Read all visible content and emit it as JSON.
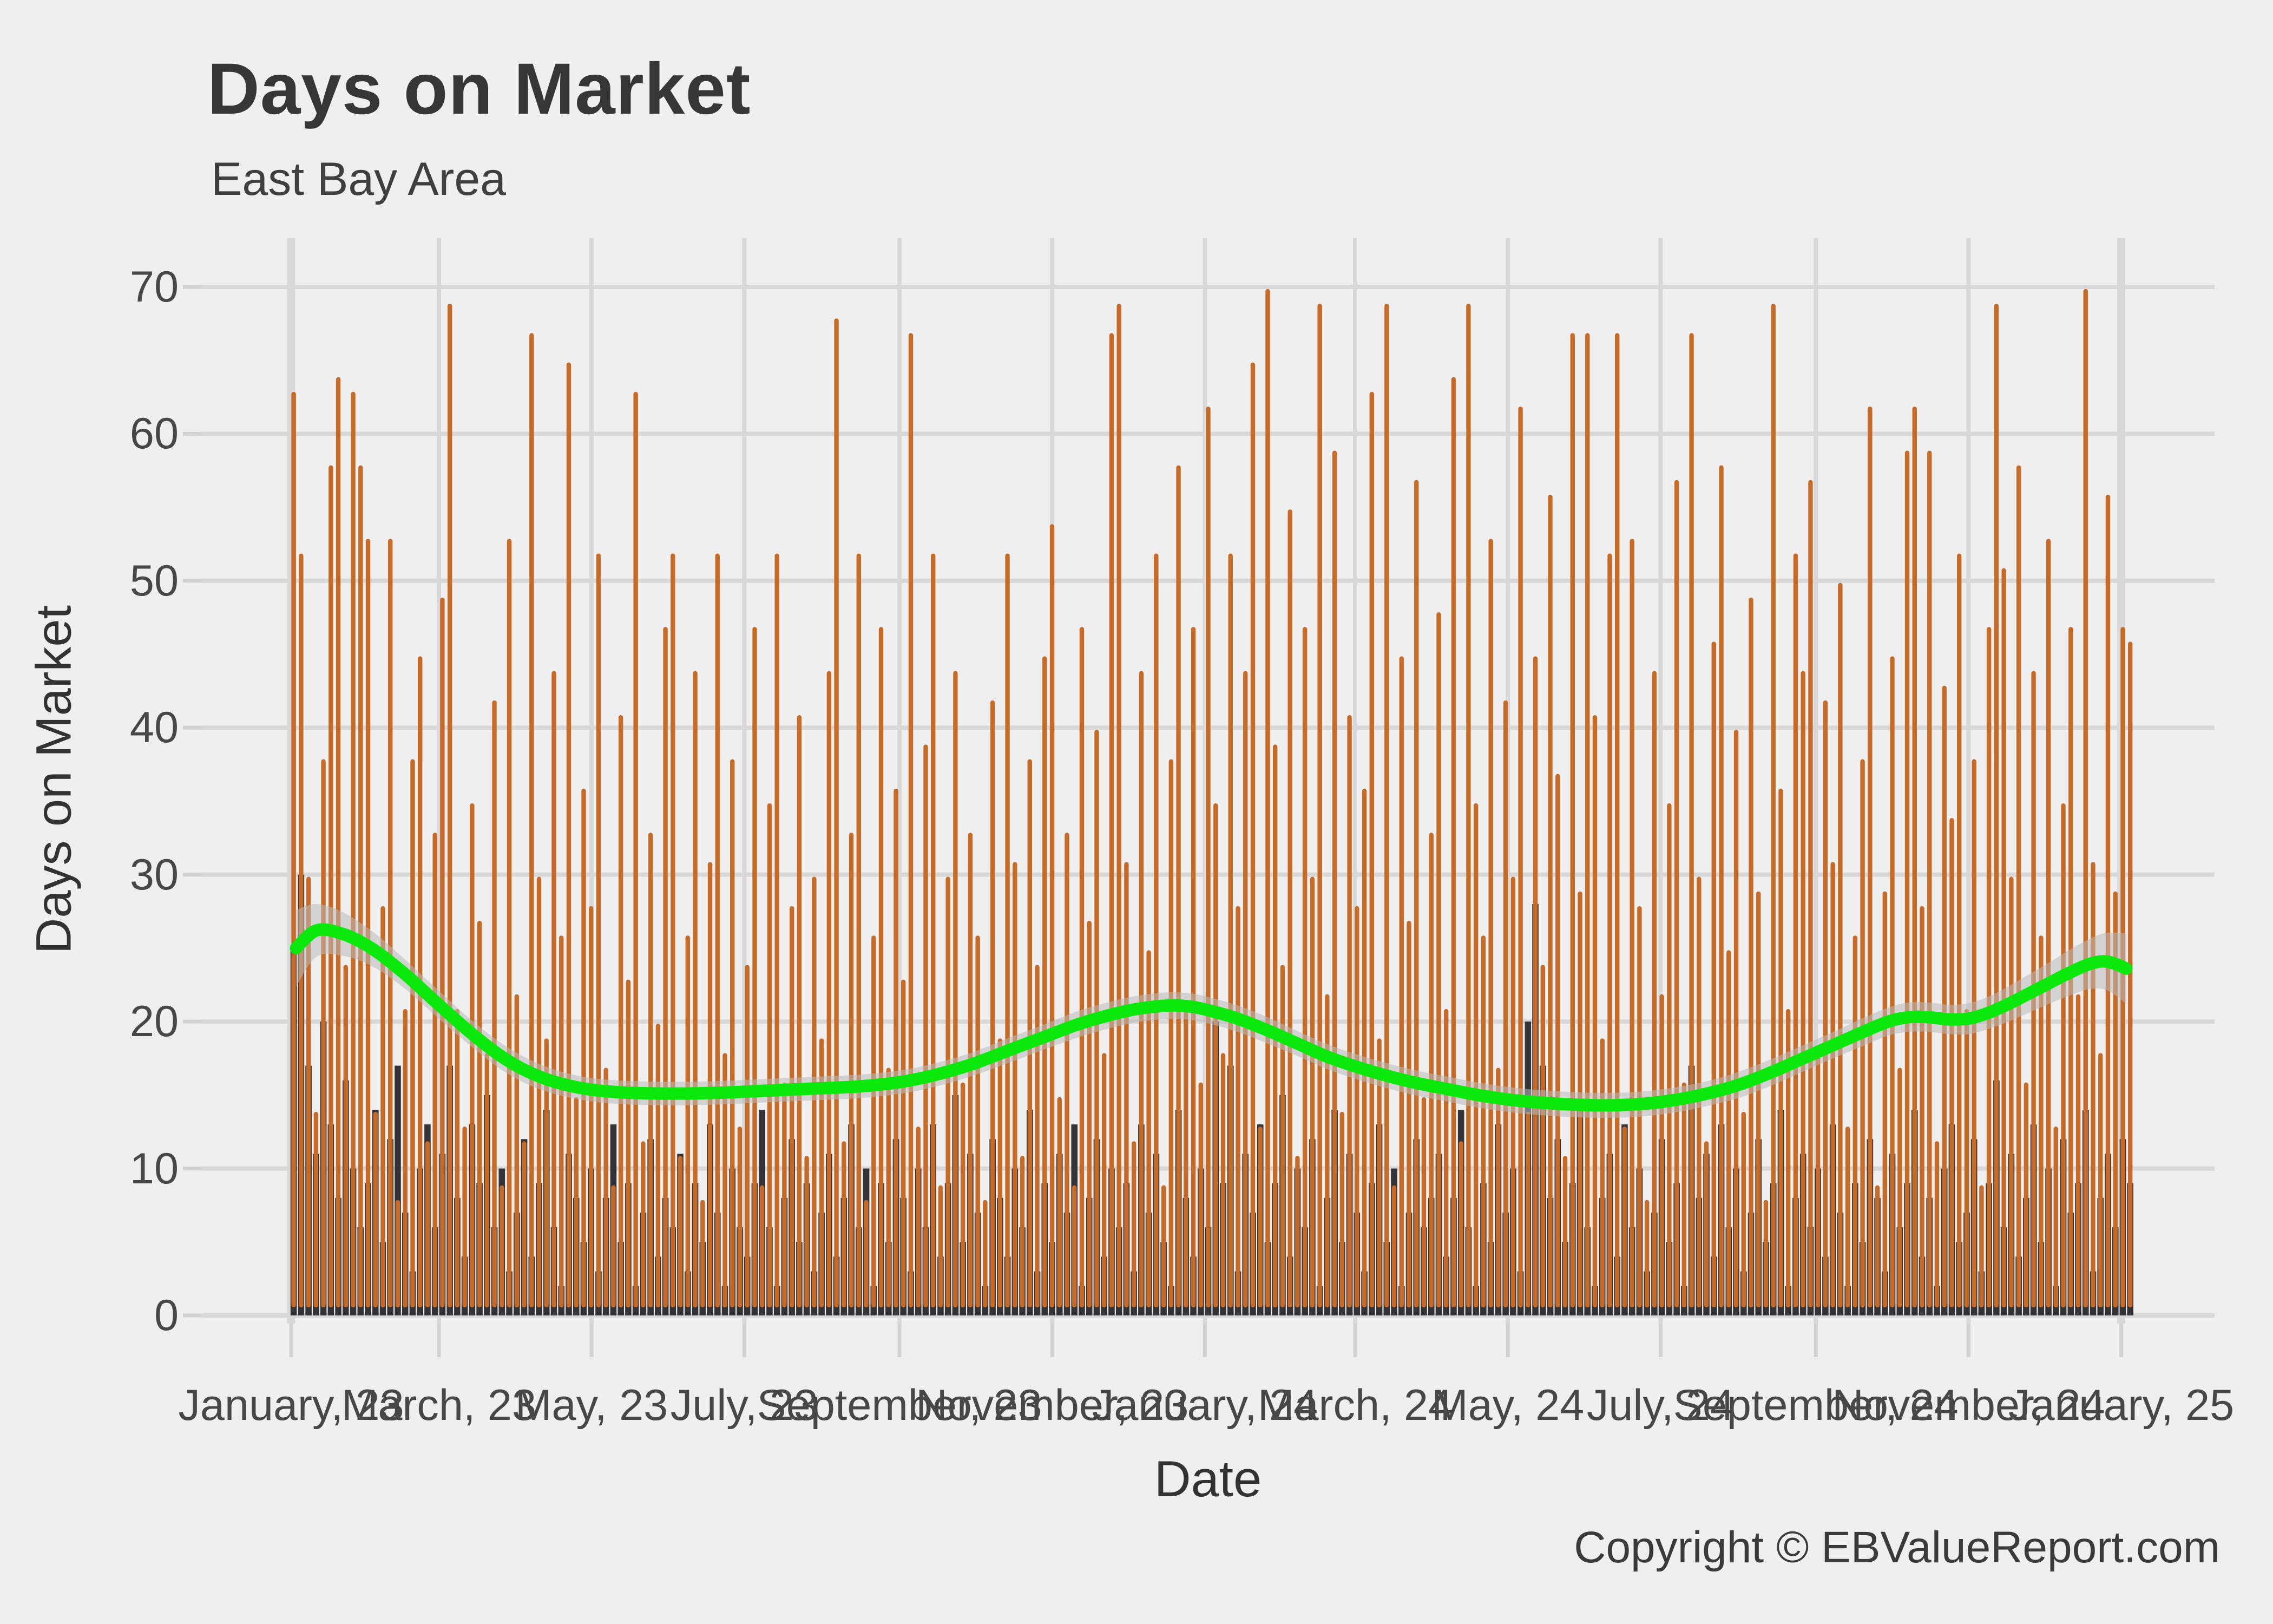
{
  "header": {
    "title": "Days on Market",
    "subtitle": "East Bay Area",
    "caption": "Copyright © EBValueReport.com"
  },
  "style": {
    "background": "#EFEFEF",
    "gridline_color": "#D8D8D8",
    "tick_color": "#D2D2D2",
    "bar_color": "#C76A26",
    "dark_bar_color": "#343338",
    "trend_color": "#0BE80B",
    "ribbon_color": "rgba(185,185,185,0.55)",
    "title_color": "#363636",
    "axis_text_color": "#474747"
  },
  "y_axis": {
    "label": "Days on Market",
    "ticks": [
      0,
      10,
      20,
      30,
      40,
      50,
      60,
      70
    ]
  },
  "x_axis": {
    "label": "Date",
    "ticks": [
      {
        "label": "January, 23",
        "day": 0,
        "emph": true
      },
      {
        "label": "March, 23",
        "day": 59,
        "emph": false
      },
      {
        "label": "May, 23",
        "day": 120,
        "emph": false
      },
      {
        "label": "July, 23",
        "day": 181,
        "emph": false
      },
      {
        "label": "September, 23",
        "day": 243,
        "emph": false
      },
      {
        "label": "November, 23",
        "day": 304,
        "emph": false
      },
      {
        "label": "January, 24",
        "day": 365,
        "emph": false
      },
      {
        "label": "March, 24",
        "day": 425,
        "emph": false
      },
      {
        "label": "May, 24",
        "day": 486,
        "emph": false
      },
      {
        "label": "July, 24",
        "day": 547,
        "emph": false
      },
      {
        "label": "September, 24",
        "day": 609,
        "emph": false
      },
      {
        "label": "November, 24",
        "day": 670,
        "emph": false
      },
      {
        "label": "January, 25",
        "day": 731,
        "emph": true
      }
    ]
  },
  "chart_data": {
    "type": "bar",
    "title": "Days on Market",
    "xlabel": "Date",
    "ylabel": "Days on Market",
    "ylim": [
      0,
      70
    ],
    "x_unit": "days since 2023-01-01 (Jan 2023 through mid-January 2025)",
    "bar_start_day": 1,
    "bar_pitch_days": 2.97,
    "series": [
      {
        "name": "listing-days-on-market-high",
        "color": "#C76A26",
        "values": [
          63,
          52,
          30,
          14,
          38,
          58,
          64,
          24,
          63,
          58,
          53,
          14,
          28,
          53,
          8,
          21,
          38,
          45,
          12,
          33,
          49,
          69,
          21,
          13,
          35,
          27,
          18,
          42,
          9,
          53,
          22,
          12,
          67,
          30,
          19,
          44,
          26,
          65,
          15,
          36,
          28,
          52,
          17,
          9,
          41,
          23,
          63,
          12,
          33,
          20,
          47,
          52,
          11,
          26,
          44,
          8,
          31,
          52,
          18,
          38,
          13,
          24,
          47,
          9,
          35,
          52,
          16,
          28,
          41,
          11,
          30,
          19,
          44,
          68,
          12,
          33,
          52,
          8,
          26,
          47,
          17,
          36,
          23,
          67,
          13,
          39,
          52,
          9,
          30,
          44,
          16,
          33,
          26,
          8,
          42,
          19,
          52,
          31,
          11,
          38,
          24,
          45,
          54,
          15,
          33,
          9,
          47,
          27,
          40,
          18,
          67,
          69,
          31,
          12,
          44,
          25,
          52,
          9,
          38,
          58,
          21,
          47,
          16,
          62,
          35,
          18,
          52,
          28,
          44,
          65,
          13,
          70,
          39,
          24,
          55,
          11,
          47,
          30,
          69,
          22,
          59,
          14,
          41,
          28,
          36,
          63,
          19,
          69,
          9,
          45,
          27,
          57,
          15,
          33,
          48,
          21,
          64,
          12,
          69,
          35,
          26,
          53,
          17,
          42,
          30,
          62,
          14,
          45,
          24,
          56,
          37,
          11,
          67,
          29,
          67,
          41,
          19,
          52,
          67,
          13,
          53,
          28,
          8,
          44,
          22,
          35,
          57,
          16,
          67,
          30,
          12,
          46,
          58,
          25,
          40,
          14,
          49,
          29,
          8,
          69,
          36,
          21,
          52,
          44,
          57,
          18,
          42,
          31,
          50,
          13,
          26,
          38,
          62,
          9,
          29,
          45,
          17,
          59,
          62,
          28,
          59,
          12,
          43,
          34,
          52,
          21,
          38,
          9,
          47,
          69,
          51,
          30,
          58,
          16,
          44,
          26,
          53,
          13,
          35,
          47,
          22,
          70,
          31,
          18,
          56,
          29,
          47,
          46
        ]
      },
      {
        "name": "listing-days-on-market-low",
        "color": "#343338",
        "values": [
          25,
          30,
          17,
          11,
          20,
          13,
          8,
          16,
          10,
          6,
          9,
          14,
          5,
          12,
          17,
          7,
          3,
          10,
          13,
          6,
          11,
          17,
          8,
          4,
          13,
          9,
          15,
          6,
          10,
          3,
          7,
          12,
          4,
          9,
          14,
          6,
          2,
          11,
          8,
          5,
          10,
          3,
          8,
          13,
          5,
          9,
          2,
          7,
          12,
          4,
          8,
          6,
          11,
          3,
          9,
          5,
          13,
          7,
          2,
          10,
          6,
          4,
          9,
          14,
          6,
          2,
          8,
          12,
          5,
          9,
          3,
          7,
          11,
          4,
          8,
          13,
          6,
          10,
          2,
          9,
          5,
          12,
          8,
          3,
          10,
          6,
          13,
          4,
          9,
          15,
          5,
          11,
          7,
          2,
          12,
          8,
          4,
          10,
          6,
          14,
          3,
          9,
          5,
          11,
          7,
          13,
          2,
          8,
          12,
          4,
          10,
          6,
          9,
          3,
          13,
          7,
          11,
          5,
          2,
          14,
          8,
          4,
          10,
          6,
          20,
          9,
          17,
          3,
          11,
          7,
          13,
          5,
          9,
          15,
          4,
          10,
          6,
          12,
          2,
          8,
          14,
          5,
          11,
          7,
          3,
          9,
          13,
          5,
          10,
          2,
          7,
          12,
          6,
          8,
          11,
          4,
          8,
          14,
          6,
          2,
          9,
          5,
          13,
          7,
          10,
          3,
          20,
          28,
          17,
          8,
          12,
          5,
          9,
          14,
          6,
          2,
          8,
          11,
          4,
          13,
          6,
          10,
          3,
          7,
          12,
          5,
          9,
          2,
          17,
          8,
          11,
          4,
          13,
          6,
          10,
          3,
          7,
          12,
          5,
          9,
          14,
          2,
          8,
          11,
          6,
          10,
          4,
          13,
          7,
          2,
          9,
          5,
          12,
          8,
          3,
          11,
          6,
          9,
          14,
          4,
          8,
          2,
          10,
          13,
          5,
          7,
          12,
          3,
          9,
          16,
          6,
          11,
          4,
          8,
          13,
          5,
          10,
          2,
          12,
          7,
          9,
          14,
          3,
          8,
          11,
          6,
          12,
          9
        ]
      },
      {
        "name": "loess-smooth-trend",
        "color": "#0BE80B",
        "note": "points are [day, value, ribbon_half_width]",
        "points": [
          [
            2,
            25.0,
            2.6
          ],
          [
            10,
            26.2,
            1.8
          ],
          [
            20,
            26.0,
            1.5
          ],
          [
            32,
            25.0,
            1.2
          ],
          [
            45,
            23.3,
            1.0
          ],
          [
            58,
            21.3,
            0.95
          ],
          [
            72,
            19.2,
            0.9
          ],
          [
            86,
            17.4,
            0.9
          ],
          [
            100,
            16.2,
            0.85
          ],
          [
            115,
            15.5,
            0.8
          ],
          [
            130,
            15.2,
            0.8
          ],
          [
            150,
            15.1,
            0.8
          ],
          [
            170,
            15.15,
            0.8
          ],
          [
            190,
            15.3,
            0.8
          ],
          [
            210,
            15.45,
            0.8
          ],
          [
            228,
            15.6,
            0.8
          ],
          [
            244,
            15.9,
            0.8
          ],
          [
            258,
            16.4,
            0.8
          ],
          [
            272,
            17.1,
            0.8
          ],
          [
            286,
            18.0,
            0.85
          ],
          [
            300,
            18.9,
            0.85
          ],
          [
            314,
            19.8,
            0.9
          ],
          [
            326,
            20.4,
            0.9
          ],
          [
            336,
            20.8,
            0.9
          ],
          [
            344,
            21.0,
            0.9
          ],
          [
            352,
            21.1,
            0.9
          ],
          [
            360,
            21.0,
            0.9
          ],
          [
            368,
            20.7,
            0.9
          ],
          [
            378,
            20.2,
            0.9
          ],
          [
            390,
            19.4,
            0.9
          ],
          [
            402,
            18.5,
            0.85
          ],
          [
            414,
            17.6,
            0.85
          ],
          [
            426,
            16.9,
            0.85
          ],
          [
            438,
            16.3,
            0.85
          ],
          [
            450,
            15.8,
            0.85
          ],
          [
            462,
            15.4,
            0.85
          ],
          [
            474,
            15.0,
            0.85
          ],
          [
            486,
            14.7,
            0.85
          ],
          [
            498,
            14.5,
            0.85
          ],
          [
            512,
            14.35,
            0.85
          ],
          [
            526,
            14.3,
            0.85
          ],
          [
            540,
            14.4,
            0.85
          ],
          [
            554,
            14.7,
            0.85
          ],
          [
            568,
            15.2,
            0.85
          ],
          [
            580,
            15.8,
            0.9
          ],
          [
            592,
            16.6,
            0.9
          ],
          [
            604,
            17.5,
            0.9
          ],
          [
            616,
            18.4,
            0.9
          ],
          [
            628,
            19.3,
            0.95
          ],
          [
            638,
            20.0,
            0.95
          ],
          [
            646,
            20.3,
            1.0
          ],
          [
            654,
            20.3,
            1.0
          ],
          [
            662,
            20.15,
            1.0
          ],
          [
            670,
            20.2,
            1.05
          ],
          [
            678,
            20.6,
            1.1
          ],
          [
            686,
            21.2,
            1.2
          ],
          [
            694,
            21.9,
            1.3
          ],
          [
            702,
            22.6,
            1.4
          ],
          [
            710,
            23.3,
            1.55
          ],
          [
            718,
            23.9,
            1.7
          ],
          [
            724,
            24.1,
            1.9
          ],
          [
            729,
            23.9,
            2.15
          ],
          [
            733,
            23.6,
            2.4
          ]
        ]
      }
    ]
  }
}
